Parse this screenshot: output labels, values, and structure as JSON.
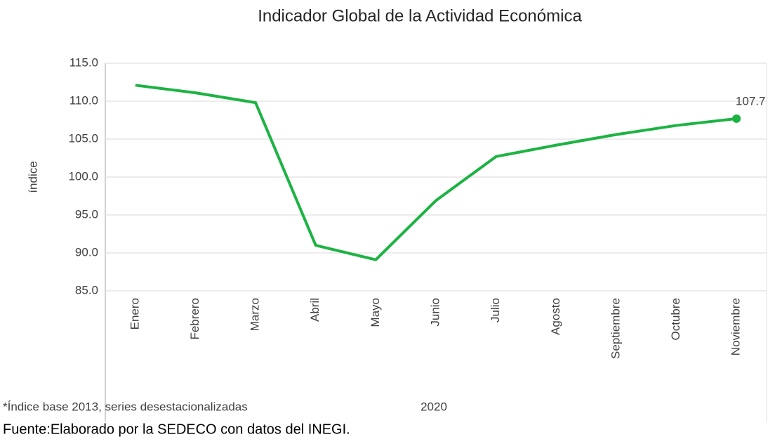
{
  "chart_data": {
    "type": "line",
    "title": "Indicador Global de la Actividad Económica",
    "ylabel": "índice",
    "xlabel": "2020",
    "footnote": "*Índice base 2013, series desestacionalizadas",
    "source": "Fuente:Elaborado por la SEDECO con datos del INEGI.",
    "categories": [
      "Enero",
      "Febrero",
      "Marzo",
      "Abril",
      "Mayo",
      "Junio",
      "Julio",
      "Agosto",
      "Septiembre",
      "Octubre",
      "Noviembre"
    ],
    "series": [
      {
        "name": "Indicador Global de la Actividad Económica",
        "color": "#1db343",
        "values": [
          112.1,
          111.1,
          109.8,
          91.0,
          89.1,
          96.9,
          102.7,
          104.2,
          105.6,
          106.8,
          107.7
        ]
      }
    ],
    "ylim": [
      85,
      115
    ],
    "yticks": [
      {
        "value": 85,
        "label": "85.0"
      },
      {
        "value": 90,
        "label": "90.0"
      },
      {
        "value": 95,
        "label": "95.0"
      },
      {
        "value": 100,
        "label": "100.0"
      },
      {
        "value": 105,
        "label": "105.0"
      },
      {
        "value": 110,
        "label": "110.0"
      },
      {
        "value": 115,
        "label": "115.0"
      }
    ],
    "grid": true
  }
}
